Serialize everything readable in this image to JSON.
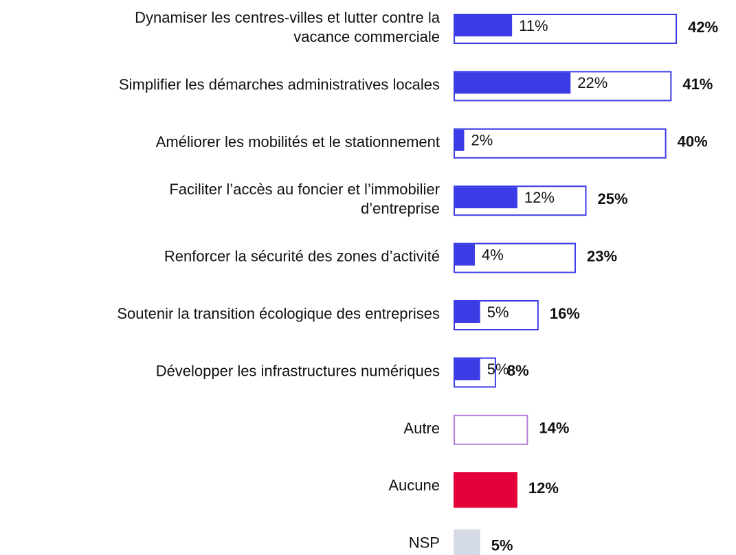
{
  "chart_data": {
    "type": "bar",
    "categories": [
      "Dynamiser les centres-villes et lutter contre la\nvacance commerciale",
      "Simplifier les démarches administratives locales",
      "Améliorer les mobilités et le stationnement",
      "Faciliter l’accès au foncier et l’immobilier\nd’entreprise",
      "Renforcer la sécurité des zones d’activité",
      "Soutenir la transition écologique des entreprises",
      "Développer les infrastructures numériques",
      "Autre",
      "Aucune",
      "NSP"
    ],
    "series": [
      {
        "values": [
          42,
          41,
          40,
          25,
          23,
          16,
          8,
          14,
          12,
          5
        ],
        "value_labels": [
          "42%",
          "41%",
          "40%",
          "25%",
          "23%",
          "16%",
          "8%",
          "14%",
          "12%",
          "5%"
        ],
        "colors": [
          "#3c3ce6",
          "#3c3ce6",
          "#3c3ce6",
          "#3c3ce6",
          "#3c3ce6",
          "#3c3ce6",
          "#3c3ce6",
          "#b57cd6",
          "#e4003a",
          "#d5dbe5"
        ],
        "filled": [
          false,
          false,
          false,
          false,
          false,
          false,
          false,
          false,
          true,
          true
        ]
      },
      {
        "values": [
          11,
          22,
          2,
          12,
          4,
          5,
          5,
          null,
          null,
          null
        ],
        "value_labels": [
          "11%",
          "22%",
          "2%",
          "12%",
          "4%",
          "5%",
          "5%",
          null,
          null,
          null
        ],
        "color": "#3c3ce6"
      }
    ]
  }
}
